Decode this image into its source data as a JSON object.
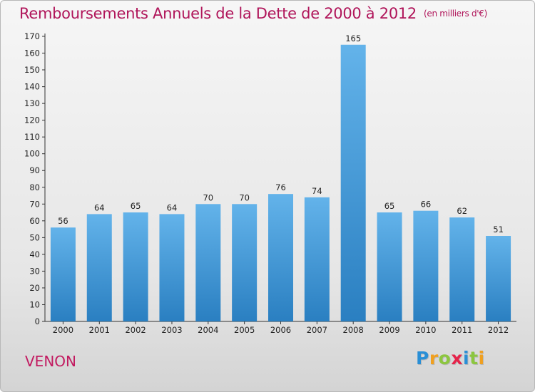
{
  "title": "Remboursements Annuels de la Dette de 2000 à 2012",
  "unit_note": "(en milliers d'€)",
  "place": "VENON",
  "logo": {
    "text": "Proxiti",
    "letters": [
      "P",
      "r",
      "o",
      "x",
      "i",
      "t",
      "i"
    ],
    "colors": [
      "#2a8fd6",
      "#f0a020",
      "#8cc63f",
      "#e5244b",
      "#2a8fd6",
      "#8cc63f",
      "#f0a020"
    ]
  },
  "colors": {
    "title": "#b0155a",
    "bar_top": "#63b3ea",
    "bar_bottom": "#2a7fc1",
    "place": "#c21a60"
  },
  "chart_data": {
    "type": "bar",
    "title": "Remboursements Annuels de la Dette de 2000 à 2012",
    "subtitle": "(en milliers d'€)",
    "categories": [
      "2000",
      "2001",
      "2002",
      "2003",
      "2004",
      "2005",
      "2006",
      "2007",
      "2008",
      "2009",
      "2010",
      "2011",
      "2012"
    ],
    "values": [
      56,
      64,
      65,
      64,
      70,
      70,
      76,
      74,
      165,
      65,
      66,
      62,
      51
    ],
    "ylim": [
      0,
      170
    ],
    "yticks": [
      0,
      10,
      20,
      30,
      40,
      50,
      60,
      70,
      80,
      90,
      100,
      110,
      120,
      130,
      140,
      150,
      160,
      170
    ],
    "xlabel": "",
    "ylabel": "",
    "grid": false,
    "data_labels": true
  }
}
